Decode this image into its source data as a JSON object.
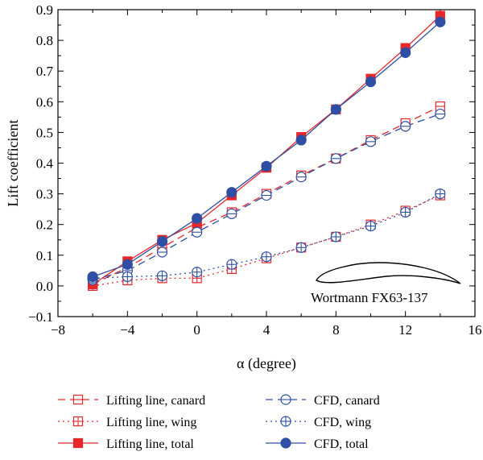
{
  "chart_data": {
    "type": "line",
    "xlabel": "α (degree)",
    "ylabel": "Lift coefficient",
    "xlim": [
      -8,
      16
    ],
    "ylim": [
      -0.1,
      0.9
    ],
    "x_ticks": [
      -8,
      -4,
      0,
      4,
      8,
      12,
      16
    ],
    "y_ticks": [
      -0.1,
      0.0,
      0.1,
      0.2,
      0.3,
      0.4,
      0.5,
      0.6,
      0.7,
      0.8,
      0.9
    ],
    "x_tick_labels": [
      "−8",
      "−4",
      "0",
      "4",
      "8",
      "12",
      "16"
    ],
    "y_tick_labels": [
      "−0.1",
      "0.0",
      "0.1",
      "0.2",
      "0.3",
      "0.4",
      "0.5",
      "0.6",
      "0.7",
      "0.8",
      "0.9"
    ],
    "grid": false,
    "legend_placement": "bottom",
    "annotation": "Wortmann FX63-137",
    "x": [
      -6,
      -4,
      -2,
      0,
      2,
      4,
      6,
      8,
      10,
      12,
      14
    ],
    "series": [
      {
        "name": "Lifting line, canard",
        "color": "#e8272a",
        "line": "dashed",
        "marker": "square-open-minus",
        "values": [
          0.005,
          0.06,
          0.125,
          0.19,
          0.24,
          0.3,
          0.36,
          0.415,
          0.475,
          0.53,
          0.585
        ]
      },
      {
        "name": "Lifting line, wing",
        "color": "#e8272a",
        "line": "dotted",
        "marker": "square-open-plus",
        "values": [
          0.0,
          0.018,
          0.025,
          0.025,
          0.055,
          0.09,
          0.125,
          0.16,
          0.2,
          0.245,
          0.295
        ]
      },
      {
        "name": "Lifting line, total",
        "color": "#e8272a",
        "line": "solid",
        "marker": "square-filled",
        "values": [
          0.005,
          0.08,
          0.15,
          0.205,
          0.295,
          0.385,
          0.485,
          0.575,
          0.675,
          0.775,
          0.88
        ]
      },
      {
        "name": "CFD, canard",
        "color": "#2e4fa3",
        "line": "dashed",
        "marker": "circle-open-minus",
        "values": [
          0.02,
          0.05,
          0.11,
          0.175,
          0.235,
          0.295,
          0.355,
          0.415,
          0.47,
          0.52,
          0.56
        ]
      },
      {
        "name": "CFD, wing",
        "color": "#2e4fa3",
        "line": "dotted",
        "marker": "circle-open-plus",
        "values": [
          0.025,
          0.03,
          0.033,
          0.045,
          0.07,
          0.095,
          0.125,
          0.16,
          0.195,
          0.24,
          0.3
        ]
      },
      {
        "name": "CFD, total",
        "color": "#2e4fa3",
        "line": "solid",
        "marker": "circle-filled",
        "values": [
          0.03,
          0.07,
          0.145,
          0.22,
          0.305,
          0.39,
          0.475,
          0.575,
          0.665,
          0.76,
          0.86
        ]
      }
    ]
  }
}
